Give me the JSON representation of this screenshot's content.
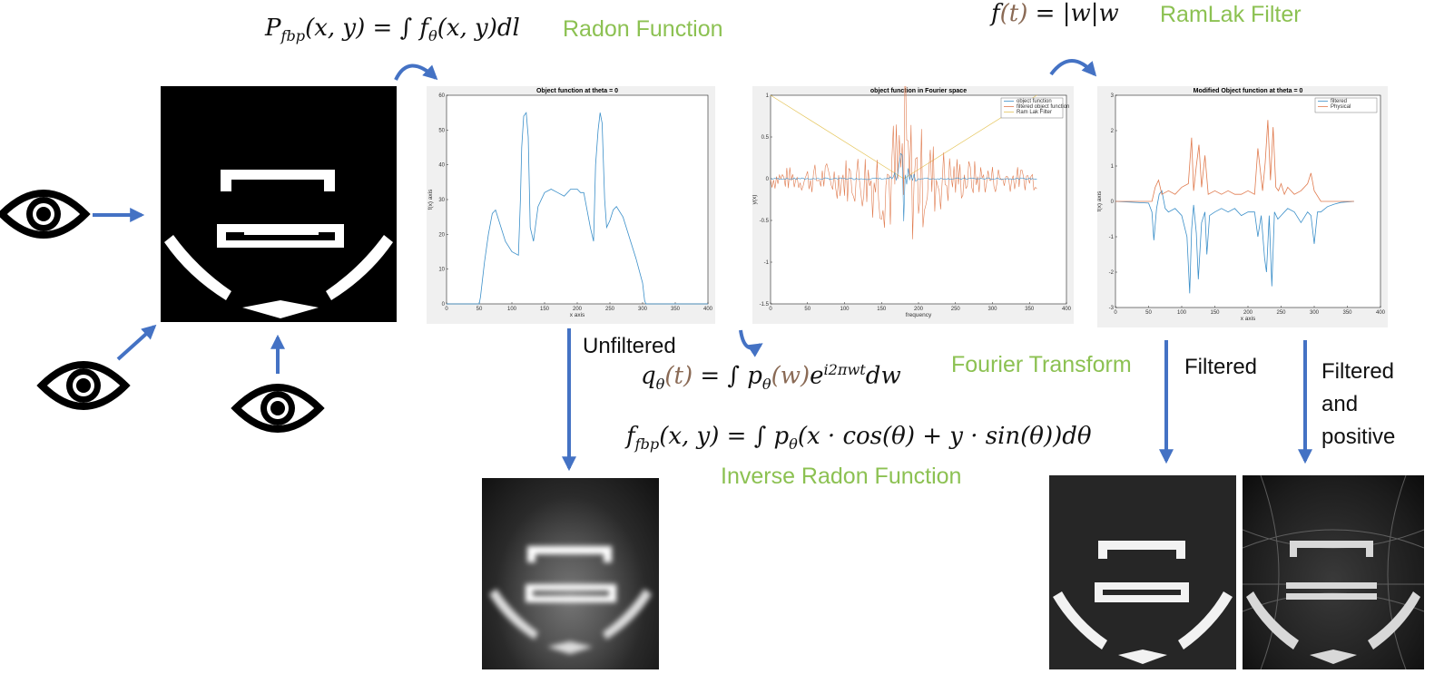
{
  "formulas": {
    "radon": "P_fbp(x,y) = ∫ f_θ(x,y) dl",
    "ramlak": "f(t) = |w|w",
    "fourier": "q_θ(t) = ∫ p_θ(w) e^{i2πwt} dw",
    "inverse": "f_fbp(x,y) = ∫ p_θ(x·cos(θ) + y·sin(θ)) dθ"
  },
  "labels": {
    "radon": "Radon Function",
    "ramlak": "RamLak Filter",
    "fourier": "Fourier Transform",
    "inverse": "Inverse Radon Function",
    "unfiltered": "Unfiltered",
    "filtered": "Filtered",
    "filtered_positive_1": "Filtered",
    "filtered_positive_2": "and",
    "filtered_positive_3": "positive"
  },
  "icons": [
    "eye-icon-left",
    "eye-icon-bottom-left",
    "eye-icon-bottom",
    "curved-arrow-icon"
  ],
  "colors": {
    "accent": "#4472c4",
    "green": "#8cc152",
    "series_blue": "#3b8fc9",
    "series_orange": "#e07b4f",
    "series_yellow": "#e5c55a"
  },
  "chart_data": [
    {
      "type": "line",
      "title": "Object function at theta = 0",
      "xlabel": "x axis",
      "ylabel": "f(x) axis",
      "xlim": [
        0,
        400
      ],
      "ylim": [
        0,
        60
      ],
      "xticks": [
        "0",
        "50",
        "100",
        "150",
        "200",
        "250",
        "300",
        "350",
        "400"
      ],
      "yticks": [
        "0",
        "10",
        "20",
        "30",
        "40",
        "50",
        "60"
      ],
      "series": [
        {
          "x": [
            0,
            50,
            52,
            58,
            64,
            70,
            75,
            80,
            90,
            100,
            110,
            113,
            115,
            118,
            122,
            125,
            128,
            133,
            140,
            150,
            160,
            170,
            180,
            190,
            200,
            205,
            210,
            220,
            225,
            228,
            232,
            235,
            238,
            242,
            245,
            250,
            255,
            260,
            270,
            280,
            290,
            300,
            303,
            305,
            310,
            400
          ],
          "y": [
            0,
            0,
            2,
            12,
            20,
            26,
            27,
            24,
            18,
            15,
            14,
            30,
            45,
            54,
            55,
            48,
            22,
            18,
            28,
            32,
            33,
            32,
            31,
            33,
            33,
            32,
            32,
            22,
            18,
            40,
            50,
            55,
            52,
            30,
            22,
            24,
            27,
            28,
            25,
            19,
            13,
            6,
            1,
            0,
            0,
            0
          ]
        }
      ]
    },
    {
      "type": "line",
      "title": "object function in Fourier space",
      "xlabel": "frequency",
      "ylabel": "y(x)",
      "xlim": [
        0,
        400
      ],
      "ylim": [
        -1.5,
        1
      ],
      "xticks": [
        "0",
        "50",
        "100",
        "150",
        "200",
        "250",
        "300",
        "350",
        "400"
      ],
      "yticks": [
        "-1.5",
        "-1",
        "-0.5",
        "0",
        "0.5",
        "1"
      ],
      "legend": [
        "object function",
        "filtered object function",
        "Ram Lak Filter"
      ],
      "legend_position": "top-right",
      "series": [
        {
          "name": "object function",
          "color": "#3b8fc9"
        },
        {
          "name": "filtered object function",
          "color": "#e07b4f"
        },
        {
          "name": "Ram Lak Filter",
          "color": "#e5c55a",
          "x": [
            0,
            180,
            360
          ],
          "y": [
            1,
            0,
            1
          ]
        }
      ]
    },
    {
      "type": "line",
      "title": "Modified Object function at theta = 0",
      "xlabel": "x axis",
      "ylabel": "f(x) axis",
      "xlim": [
        0,
        400
      ],
      "ylim": [
        -3,
        3
      ],
      "xticks": [
        "0",
        "50",
        "100",
        "150",
        "200",
        "250",
        "300",
        "350",
        "400"
      ],
      "yticks": [
        "-3",
        "-2",
        "-1",
        "0",
        "1",
        "2",
        "3"
      ],
      "legend": [
        "filtered",
        "Physical"
      ],
      "legend_position": "top-right",
      "series": [
        {
          "name": "filtered",
          "color": "#3b8fc9",
          "x": [
            0,
            50,
            55,
            58,
            62,
            66,
            70,
            75,
            80,
            90,
            100,
            108,
            112,
            115,
            118,
            122,
            125,
            130,
            135,
            138,
            142,
            150,
            160,
            170,
            180,
            190,
            200,
            210,
            215,
            220,
            225,
            228,
            232,
            236,
            240,
            245,
            250,
            255,
            260,
            270,
            280,
            290,
            295,
            300,
            305,
            310,
            320,
            330,
            340,
            360
          ],
          "y": [
            0,
            -0.05,
            -0.3,
            -1.1,
            -0.2,
            0.2,
            0.3,
            -0.2,
            -0.3,
            -0.2,
            -0.4,
            -1.0,
            -2.6,
            -0.8,
            -0.1,
            -0.9,
            -2.2,
            -0.6,
            -0.3,
            -1.5,
            -0.4,
            -0.3,
            -0.2,
            -0.3,
            -0.2,
            -0.4,
            -0.3,
            -0.3,
            -1.0,
            -0.4,
            -1.6,
            -2.0,
            -0.4,
            -2.4,
            -0.3,
            -0.5,
            -0.4,
            -0.3,
            -0.2,
            -0.3,
            -0.6,
            -0.3,
            -0.4,
            -1.2,
            -0.3,
            -0.3,
            -0.15,
            -0.08,
            -0.03,
            0
          ]
        },
        {
          "name": "Physical",
          "color": "#e07b4f",
          "x": [
            0,
            55,
            60,
            65,
            70,
            80,
            90,
            100,
            110,
            115,
            118,
            122,
            126,
            130,
            135,
            140,
            150,
            160,
            170,
            180,
            190,
            200,
            210,
            215,
            222,
            226,
            230,
            234,
            238,
            242,
            246,
            250,
            255,
            260,
            270,
            280,
            290,
            295,
            300,
            310,
            360
          ],
          "y": [
            0,
            0,
            0.4,
            0.6,
            0.2,
            0.3,
            0.2,
            0.4,
            0.5,
            1.8,
            0.3,
            1.0,
            1.6,
            0.4,
            1.3,
            0.2,
            0.3,
            0.2,
            0.3,
            0.2,
            0.2,
            0.3,
            0.2,
            1.5,
            0.3,
            1.1,
            2.3,
            0.6,
            2.1,
            0.4,
            0.3,
            0.5,
            0.2,
            0.4,
            0.2,
            0.3,
            0.5,
            0.8,
            0.3,
            0,
            0
          ]
        }
      ]
    }
  ]
}
